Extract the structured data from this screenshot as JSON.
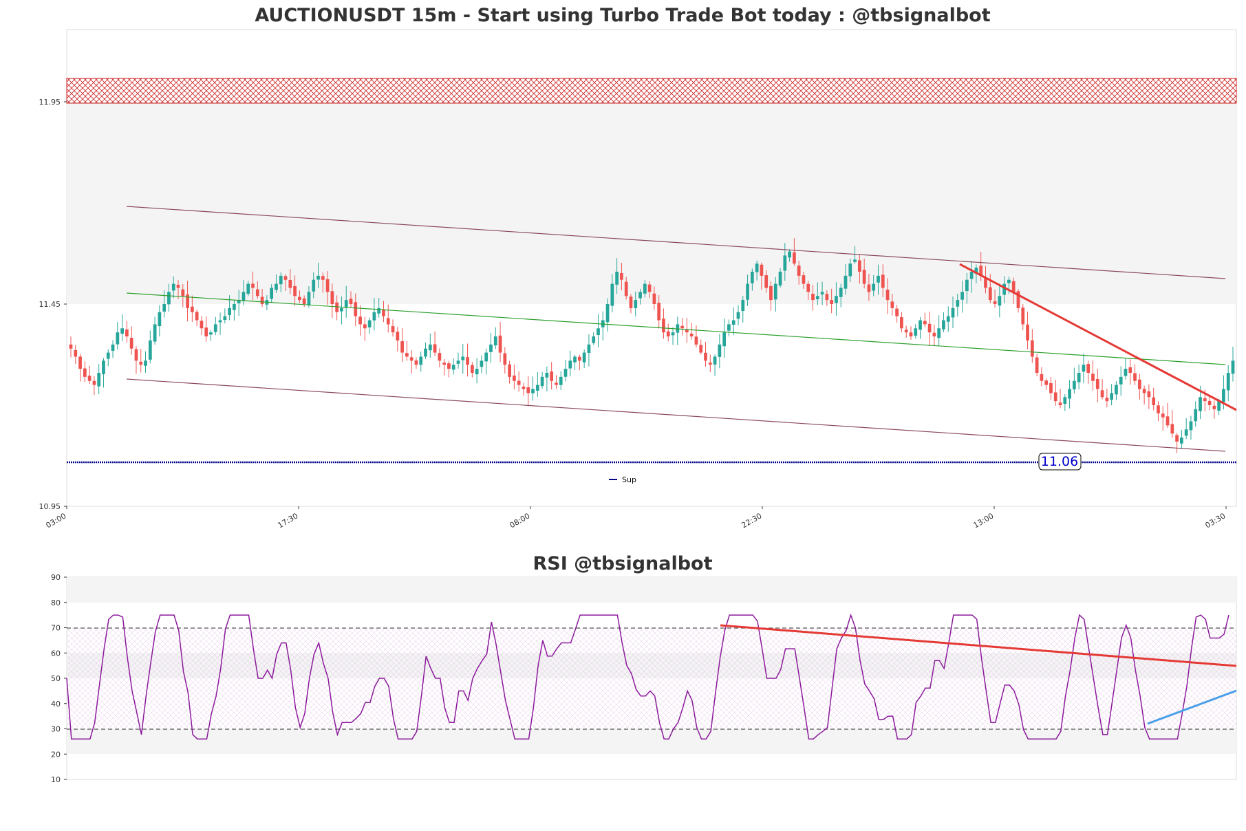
{
  "chart_data": [
    {
      "type": "candlestick",
      "title": "AUCTIONUSDT 15m - Start using Turbo Trade Bot today : @tbsignalbot",
      "ylim": [
        10.95,
        12.13
      ],
      "y_ticks": [
        "11.95",
        "11.45",
        "10.95"
      ],
      "x_ticks": [
        "03:00",
        "17:30",
        "08:00",
        "22:30",
        "13:00",
        "03:30"
      ],
      "candles": 512,
      "resistance_zone": [
        11.89,
        11.95
      ],
      "channel_upper": [
        [
          0.052,
          11.7
        ],
        [
          1.0,
          11.52
        ]
      ],
      "channel_mid": [
        [
          0.052,
          11.48
        ],
        [
          1.0,
          11.3
        ]
      ],
      "channel_lower": [
        [
          0.052,
          11.27
        ],
        [
          1.0,
          11.09
        ]
      ],
      "downtrend_line": [
        [
          0.77,
          11.56
        ],
        [
          1.0,
          11.19
        ]
      ],
      "support": {
        "name": "Sup",
        "value": 11.06,
        "label": "11.06"
      },
      "legend": [
        "Sup"
      ],
      "colors": {
        "up": "#26a69a",
        "down": "#ef5350",
        "channel": "#8b4a5c",
        "mid": "#2ca02c",
        "trend": "#e53935",
        "support": "#00008b"
      },
      "series_close": [
        11.34,
        11.32,
        11.29,
        11.27,
        11.26,
        11.25,
        11.28,
        11.31,
        11.33,
        11.35,
        11.38,
        11.39,
        11.37,
        11.34,
        11.31,
        11.3,
        11.31,
        11.36,
        11.4,
        11.43,
        11.45,
        11.48,
        11.5,
        11.49,
        11.47,
        11.44,
        11.43,
        11.41,
        11.39,
        11.37,
        11.38,
        11.4,
        11.41,
        11.42,
        11.44,
        11.45,
        11.46,
        11.48,
        11.5,
        11.49,
        11.47,
        11.45,
        11.46,
        11.49,
        11.5,
        11.52,
        11.51,
        11.49,
        11.47,
        11.46,
        11.45,
        11.48,
        11.51,
        11.52,
        11.51,
        11.48,
        11.45,
        11.43,
        11.44,
        11.46,
        11.45,
        11.42,
        11.4,
        11.39,
        11.41,
        11.43,
        11.44,
        11.42,
        11.4,
        11.38,
        11.36,
        11.33,
        11.32,
        11.31,
        11.3,
        11.32,
        11.34,
        11.35,
        11.33,
        11.31,
        11.3,
        11.29,
        11.3,
        11.31,
        11.32,
        11.3,
        11.28,
        11.29,
        11.31,
        11.33,
        11.35,
        11.37,
        11.33,
        11.3,
        11.27,
        11.26,
        11.25,
        11.24,
        11.23,
        11.24,
        11.25,
        11.27,
        11.28,
        11.26,
        11.25,
        11.27,
        11.29,
        11.31,
        11.32,
        11.31,
        11.33,
        11.35,
        11.37,
        11.39,
        11.41,
        11.45,
        11.5,
        11.53,
        11.51,
        11.47,
        11.44,
        11.46,
        11.48,
        11.5,
        11.48,
        11.45,
        11.41,
        11.38,
        11.37,
        11.38,
        11.4,
        11.39,
        11.38,
        11.37,
        11.35,
        11.33,
        11.31,
        11.3,
        11.32,
        11.35,
        11.38,
        11.4,
        11.41,
        11.43,
        11.46,
        11.5,
        11.53,
        11.55,
        11.52,
        11.49,
        11.46,
        11.5,
        11.53,
        11.57,
        11.58,
        11.55,
        11.52,
        11.5,
        11.48,
        11.46,
        11.47,
        11.48,
        11.46,
        11.45,
        11.47,
        11.49,
        11.52,
        11.55,
        11.56,
        11.53,
        11.5,
        11.48,
        11.5,
        11.52,
        11.49,
        11.46,
        11.44,
        11.42,
        11.39,
        11.38,
        11.37,
        11.39,
        11.41,
        11.4,
        11.38,
        11.37,
        11.39,
        11.41,
        11.42,
        11.44,
        11.46,
        11.48,
        11.51,
        11.53,
        11.54,
        11.52,
        11.49,
        11.46,
        11.45,
        11.47,
        11.5,
        11.51,
        11.48,
        11.44,
        11.4,
        11.36,
        11.32,
        11.28,
        11.26,
        11.25,
        11.23,
        11.21,
        11.2,
        11.22,
        11.24,
        11.26,
        11.28,
        11.3,
        11.28,
        11.26,
        11.24,
        11.22,
        11.21,
        11.23,
        11.25,
        11.27,
        11.29,
        11.28,
        11.26,
        11.24,
        11.23,
        11.22,
        11.2,
        11.18,
        11.17,
        11.15,
        11.13,
        11.11,
        11.12,
        11.14,
        11.16,
        11.19,
        11.22,
        11.21,
        11.2,
        11.19,
        11.21,
        11.24,
        11.28,
        11.31
      ]
    },
    {
      "type": "line",
      "title": "RSI @tbsignalbot",
      "ylim": [
        10,
        90
      ],
      "y_ticks": [
        "90",
        "80",
        "70",
        "60",
        "50",
        "40",
        "30",
        "20",
        "10"
      ],
      "overbought": 70,
      "oversold": 30,
      "resistance_line": [
        [
          0.57,
          71
        ],
        [
          1.0,
          55
        ]
      ],
      "support_line": [
        [
          0.94,
          32
        ],
        [
          1.0,
          45
        ]
      ],
      "colors": {
        "rsi": "#8b1a9b",
        "resistance": "#e53935",
        "support": "#4a9ee8"
      }
    }
  ]
}
